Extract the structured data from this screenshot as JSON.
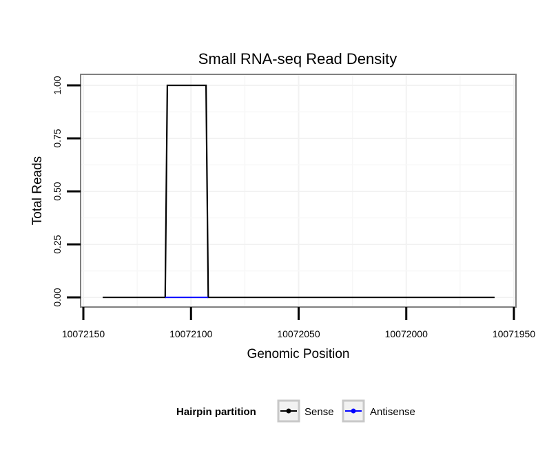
{
  "chart_data": {
    "type": "line",
    "title": "Small RNA-seq Read Density",
    "xlabel": "Genomic Position",
    "ylabel": "Total Reads",
    "xlim": [
      10072150,
      10071950
    ],
    "ylim": [
      0,
      1
    ],
    "x_reversed": true,
    "x_ticks": [
      10072150,
      10072100,
      10072050,
      10072000,
      10071950
    ],
    "x_tick_labels": [
      "10072150",
      "10072100",
      "10072050",
      "10072000",
      "10071950"
    ],
    "y_ticks": [
      0,
      0.25,
      0.5,
      0.75,
      1
    ],
    "y_tick_labels": [
      "0.00",
      "0.25",
      "0.50",
      "0.75",
      "1.00"
    ],
    "grid": true,
    "legend": {
      "title": "Hairpin partition",
      "position": "bottom",
      "entries": [
        "Sense",
        "Antisense"
      ]
    },
    "series": [
      {
        "name": "Sense",
        "color": "#000000",
        "x": [
          10072141,
          10072112,
          10072111,
          10072093,
          10072092,
          10071959
        ],
        "y": [
          0,
          0,
          1,
          1,
          0,
          0
        ]
      },
      {
        "name": "Antisense",
        "color": "#0000ff",
        "x": [
          10072112,
          10072092
        ],
        "y": [
          0,
          0
        ]
      }
    ]
  }
}
